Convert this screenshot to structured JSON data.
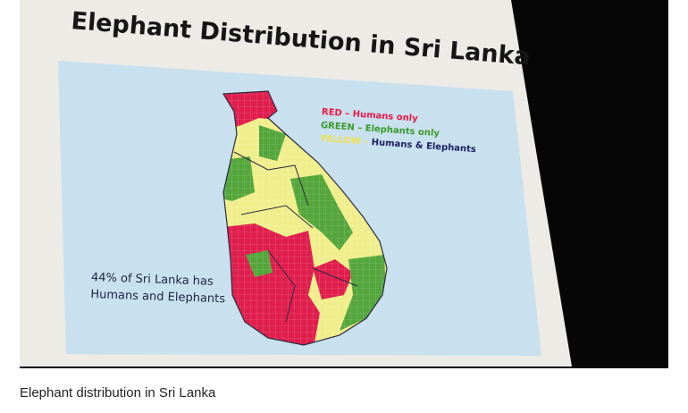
{
  "slide": {
    "title": "Elephant Distribution in Sri Lanka",
    "legend": [
      {
        "key": "RED – Humans only"
      },
      {
        "key": "GREEN – Elephants only"
      },
      {
        "key": "YELLOW –",
        "label": "Humans & Elephants"
      }
    ],
    "note": [
      "44% of Sri Lanka has",
      "Humans and Elephants"
    ]
  },
  "caption": "Elephant distribution in Sri Lanka"
}
